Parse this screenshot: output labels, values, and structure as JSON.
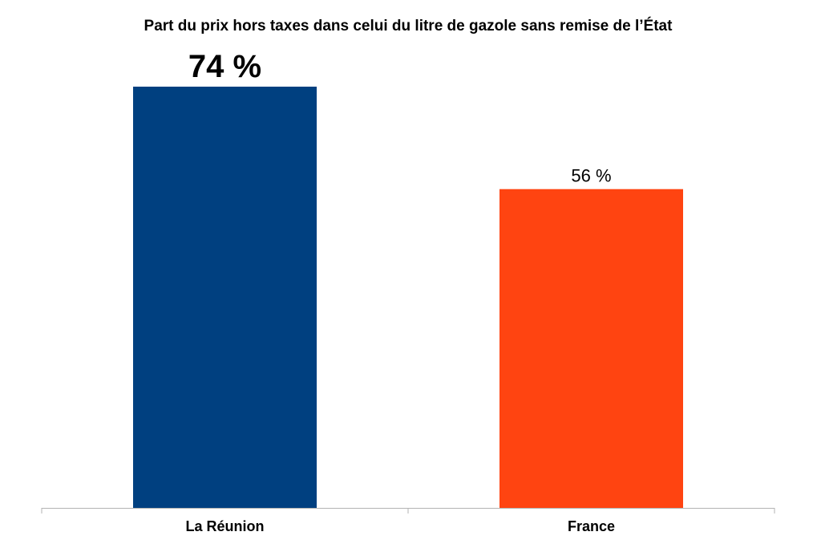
{
  "chart_data": {
    "type": "bar",
    "title": "Part du prix hors taxes dans celui du litre de gazole sans remise de l’État",
    "categories": [
      "La Réunion",
      "France"
    ],
    "values": [
      74,
      56
    ],
    "value_labels": [
      "74 %",
      "56 %"
    ],
    "bar_colors": [
      "#004080",
      "#ff4411"
    ],
    "axis_color": "#b3b3b3",
    "ylim": [
      0,
      74
    ],
    "grid": false,
    "legend": "none",
    "xlabel": "",
    "ylabel": ""
  }
}
